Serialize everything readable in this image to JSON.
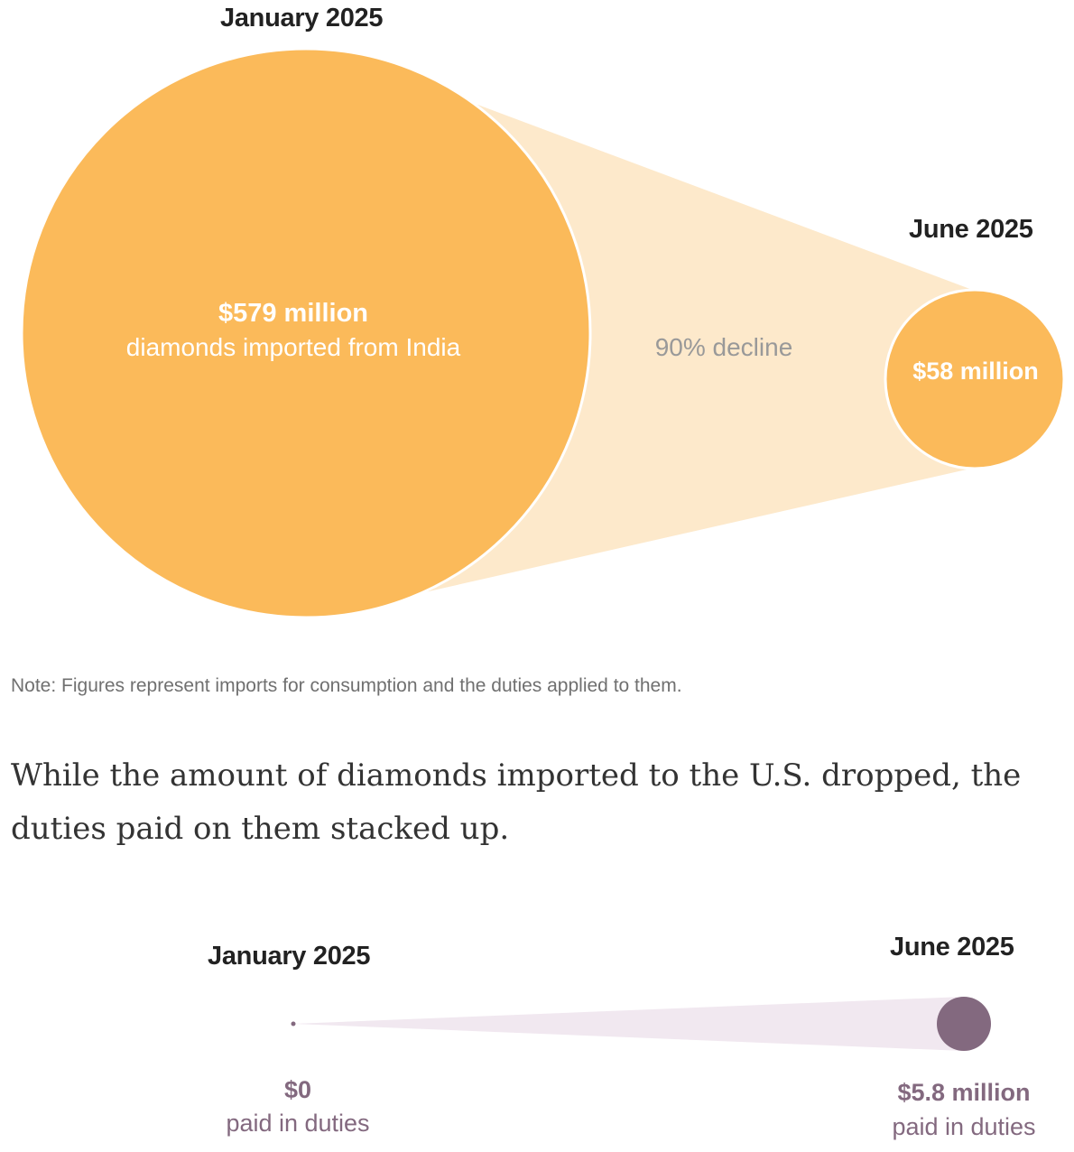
{
  "chart_data": [
    {
      "type": "bubble",
      "categories": [
        "January 2025",
        "June 2025"
      ],
      "values": [
        579,
        58
      ],
      "value_labels": [
        "$579 million",
        "$58 million"
      ],
      "first_sublabel": "diamonds imported from India",
      "change_label": "90% decline",
      "colors": {
        "bubble": "#fbba5a",
        "connector": "#fde9cb",
        "bubble_text": "#ffffff",
        "change_text": "#999999"
      }
    },
    {
      "type": "bubble",
      "categories": [
        "January 2025",
        "June 2025"
      ],
      "values": [
        0,
        5.8
      ],
      "value_labels": [
        "$0",
        "$5.8 million"
      ],
      "sublabels": [
        "paid in duties",
        "paid in duties"
      ],
      "colors": {
        "bubble": "#83697f",
        "connector": "#f1e8f0",
        "label": "#83697f"
      }
    }
  ],
  "note": "Note: Figures represent imports for consumption and the duties applied to them.",
  "body_text": "While the amount of diamonds imported to the U.S. dropped, the duties paid on them stacked up."
}
